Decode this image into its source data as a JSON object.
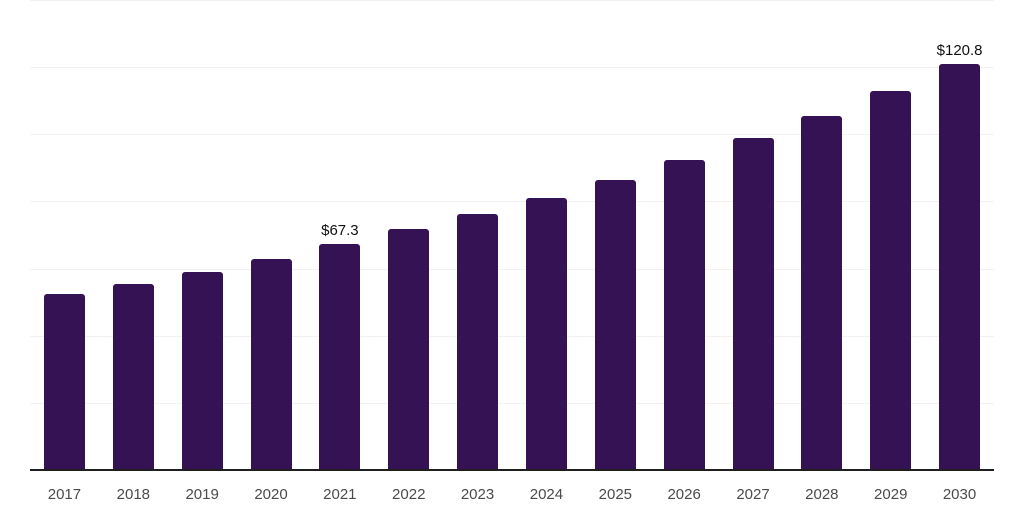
{
  "chart_data": {
    "type": "bar",
    "title": "",
    "xlabel": "",
    "ylabel": "",
    "categories": [
      "2017",
      "2018",
      "2019",
      "2020",
      "2021",
      "2022",
      "2023",
      "2024",
      "2025",
      "2026",
      "2027",
      "2028",
      "2029",
      "2030"
    ],
    "values": [
      52.4,
      55.4,
      59.0,
      62.9,
      67.3,
      71.8,
      76.2,
      81.1,
      86.5,
      92.4,
      98.9,
      105.3,
      112.9,
      120.8
    ],
    "data_labels": [
      {
        "category": "2021",
        "text": "$67.3"
      },
      {
        "category": "2030",
        "text": "$120.8"
      }
    ],
    "ylim": [
      0,
      140
    ],
    "grid_step": 20,
    "grid": true,
    "legend": false,
    "colors": {
      "bar": "#341253",
      "grid_line": "#f2f2f3",
      "axis_line": "#1f1f1f",
      "tick_label": "#4b4b4b",
      "data_label": "#111111",
      "background": "#ffffff"
    }
  }
}
